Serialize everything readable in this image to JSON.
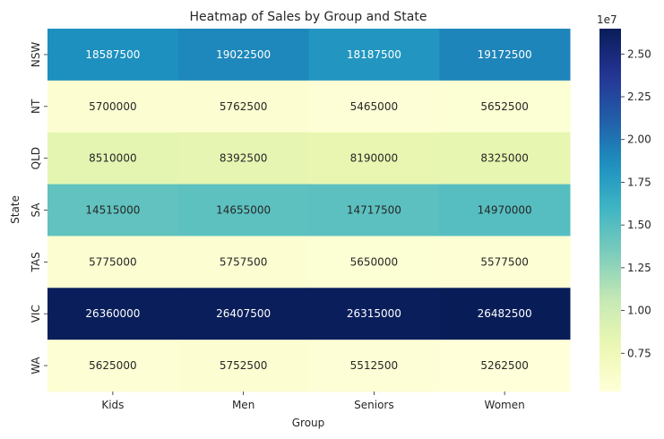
{
  "chart_data": {
    "type": "heatmap",
    "title": "Heatmap of Sales by Group and State",
    "xlabel": "Group",
    "ylabel": "State",
    "x_categories": [
      "Kids",
      "Men",
      "Seniors",
      "Women"
    ],
    "y_categories": [
      "NSW",
      "NT",
      "QLD",
      "SA",
      "TAS",
      "VIC",
      "WA"
    ],
    "values": [
      [
        18587500,
        19022500,
        18187500,
        19172500
      ],
      [
        5700000,
        5762500,
        5465000,
        5652500
      ],
      [
        8510000,
        8392500,
        8190000,
        8325000
      ],
      [
        14515000,
        14655000,
        14717500,
        14970000
      ],
      [
        5775000,
        5757500,
        5650000,
        5577500
      ],
      [
        26360000,
        26407500,
        26315000,
        26482500
      ],
      [
        5625000,
        5752500,
        5512500,
        5262500
      ]
    ],
    "colormap": "YlGnBu",
    "value_range": [
      5262500,
      26482500
    ],
    "colorbar": {
      "ticks": [
        0.75,
        1.0,
        1.25,
        1.5,
        1.75,
        2.0,
        2.25,
        2.5
      ],
      "tick_labels": [
        "0.75",
        "1.00",
        "1.25",
        "1.50",
        "1.75",
        "2.00",
        "2.25",
        "2.50"
      ],
      "scale_label": "1e7"
    }
  }
}
